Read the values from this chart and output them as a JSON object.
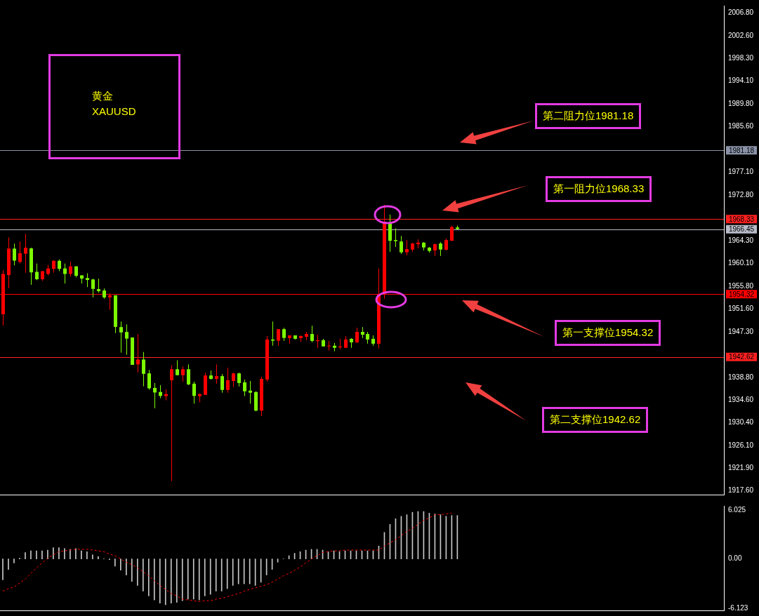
{
  "chart_data": [
    {
      "type": "candlestick",
      "title": "黄金",
      "subtitle": "XAUUSD",
      "categories": [
        null,
        null,
        null,
        null,
        null,
        null,
        null,
        null,
        null,
        null,
        null,
        null,
        null,
        null,
        null,
        null,
        null,
        null,
        null,
        null,
        null,
        null,
        null,
        null,
        null,
        null,
        null,
        null,
        null,
        null,
        null,
        null,
        null,
        null,
        null,
        null,
        null,
        null,
        null,
        null,
        null,
        null,
        null,
        null,
        null,
        null,
        null,
        null,
        null,
        null,
        null,
        null,
        null,
        null,
        null,
        null,
        null,
        null,
        null,
        null,
        null,
        null,
        null,
        null,
        null,
        null,
        null,
        null,
        null,
        null,
        null,
        null,
        null,
        null,
        null,
        null,
        null,
        null,
        null,
        null,
        null,
        null,
        null,
        null,
        null,
        null,
        null,
        null,
        null,
        null,
        null,
        null,
        null,
        null,
        null,
        null,
        null,
        null,
        null,
        null,
        null,
        null,
        null,
        null,
        null,
        null,
        null,
        null,
        null,
        null,
        null,
        null,
        null,
        null,
        null,
        null,
        null,
        null,
        null,
        null,
        null,
        null,
        null,
        null,
        null,
        null,
        null,
        null,
        null
      ],
      "ohlc": [
        [
          1950.58,
          1958.83,
          1948.48,
          1958.1
        ],
        [
          1957.89,
          1964.93,
          1955.44,
          1962.83
        ],
        [
          1962.83,
          1963.77,
          1959.69,
          1960.59
        ],
        [
          1960.34,
          1964.16,
          1960.08,
          1961.97
        ],
        [
          1961.88,
          1965.58,
          1958.32,
          1963.0
        ],
        [
          1962.87,
          1963.0,
          1956.08,
          1958.4
        ],
        [
          1958.49,
          1960.04,
          1956.94,
          1957.11
        ],
        [
          1957.11,
          1958.62,
          1956.81,
          1958.62
        ],
        [
          1958.1,
          1959.78,
          1957.84,
          1959.13
        ],
        [
          1959.05,
          1960.68,
          1958.36,
          1960.55
        ],
        [
          1960.55,
          1960.81,
          1958.62,
          1959.05
        ],
        [
          1959.13,
          1960.04,
          1956.3,
          1958.1
        ],
        [
          1958.1,
          1960.42,
          1957.59,
          1959.52
        ],
        [
          1959.52,
          1959.52,
          1957.46,
          1957.76
        ],
        [
          1957.84,
          1957.84,
          1956.3,
          1957.24
        ],
        [
          1957.33,
          1958.23,
          1955.65,
          1956.98
        ],
        [
          1957.07,
          1957.2,
          1953.72,
          1955.31
        ],
        [
          1955.27,
          1957.2,
          1954.62,
          1954.88
        ],
        [
          1955.01,
          1955.4,
          1953.46,
          1953.72
        ],
        [
          1953.72,
          1954.49,
          1951.4,
          1954.11
        ],
        [
          1954.11,
          1954.11,
          1947.06,
          1948.22
        ],
        [
          1948.18,
          1949.21,
          1943.41,
          1947.19
        ],
        [
          1947.27,
          1948.69,
          1943.02,
          1946.03
        ],
        [
          1946.24,
          1946.24,
          1941.13,
          1941.13
        ],
        [
          1941.21,
          1946.89,
          1939.71,
          1942.12
        ],
        [
          1942.12,
          1943.53,
          1937.13,
          1939.45
        ],
        [
          1939.54,
          1940.18,
          1936.49,
          1936.75
        ],
        [
          1936.83,
          1937.73,
          1933.01,
          1935.97
        ],
        [
          1936.06,
          1937.35,
          1934.9,
          1935.33
        ],
        [
          1935.29,
          1936.58,
          1934.51,
          1935.67
        ],
        [
          1938.25,
          1941.09,
          1919.43,
          1940.31
        ],
        [
          1940.31,
          1941.99,
          1939.2,
          1939.2
        ],
        [
          1939.2,
          1940.83,
          1937.99,
          1940.31
        ],
        [
          1940.31,
          1941.22,
          1937.35,
          1937.48
        ],
        [
          1937.61,
          1937.99,
          1933.87,
          1935.33
        ],
        [
          1935.29,
          1935.8,
          1934.12,
          1935.67
        ],
        [
          1935.54,
          1939.67,
          1935.54,
          1939.15
        ],
        [
          1939.15,
          1940.06,
          1938.38,
          1938.51
        ],
        [
          1938.51,
          1941.22,
          1937.61,
          1939.02
        ],
        [
          1939.02,
          1939.41,
          1935.93,
          1936.45
        ],
        [
          1936.45,
          1940.57,
          1935.93,
          1938.25
        ],
        [
          1938.12,
          1939.67,
          1936.96,
          1939.54
        ],
        [
          1939.54,
          1939.67,
          1937.09,
          1937.74
        ],
        [
          1937.86,
          1938.38,
          1935.29,
          1936.19
        ],
        [
          1936.32,
          1938.12,
          1933.87,
          1935.93
        ],
        [
          1936.06,
          1936.19,
          1932.45,
          1932.58
        ],
        [
          1932.58,
          1938.89,
          1931.55,
          1938.51
        ],
        [
          1938.38,
          1946.5,
          1937.99,
          1945.86
        ],
        [
          1945.86,
          1949.21,
          1944.7,
          1945.64
        ],
        [
          1945.64,
          1947.79,
          1944.7,
          1947.79
        ],
        [
          1947.79,
          1948.05,
          1945.6,
          1946.16
        ],
        [
          1946.12,
          1946.63,
          1945.08,
          1946.63
        ],
        [
          1946.63,
          1946.63,
          1945.86,
          1945.99
        ],
        [
          1946.12,
          1946.63,
          1945.43,
          1946.5
        ],
        [
          1946.37,
          1947.28,
          1945.73,
          1946.89
        ],
        [
          1946.89,
          1948.44,
          1945.34,
          1945.6
        ],
        [
          1945.56,
          1946.76,
          1944.31,
          1945.73
        ],
        [
          1945.73,
          1945.99,
          1944.57,
          1944.57
        ],
        [
          1944.57,
          1945.6,
          1943.8,
          1944.7
        ],
        [
          1944.7,
          1945.21,
          1943.67,
          1944.31
        ],
        [
          1944.4,
          1945.99,
          1944.05,
          1944.57
        ],
        [
          1944.31,
          1946.5,
          1944.31,
          1945.86
        ],
        [
          1945.99,
          1946.12,
          1944.31,
          1945.34
        ],
        [
          1945.34,
          1948.05,
          1945.21,
          1947.28
        ],
        [
          1947.28,
          1948.18,
          1946.12,
          1946.76
        ],
        [
          1946.89,
          1947.28,
          1945.08,
          1945.86
        ],
        [
          1945.99,
          1946.63,
          1944.7,
          1945.08
        ],
        [
          1945.08,
          1959.14,
          1944.18,
          1954.32
        ],
        [
          1954.32,
          1971.0,
          1953.47,
          1967.86
        ],
        [
          1967.65,
          1969.19,
          1962.23,
          1964.29
        ],
        [
          1964.42,
          1966.61,
          1963.13,
          1964.21
        ],
        [
          1964.16,
          1965.2,
          1961.84,
          1962.14
        ],
        [
          1962.14,
          1964.42,
          1961.59,
          1962.75
        ],
        [
          1962.66,
          1963.91,
          1962.23,
          1963.78
        ],
        [
          1963.65,
          1964.55,
          1962.87,
          1963.95
        ],
        [
          1963.95,
          1964.04,
          1962.49,
          1963.05
        ],
        [
          1963.01,
          1963.13,
          1962.1,
          1962.4
        ],
        [
          1962.49,
          1963.78,
          1961.46,
          1963.65
        ],
        [
          1963.78,
          1964.04,
          1961.46,
          1962.66
        ],
        [
          1962.62,
          1964.68,
          1962.49,
          1964.42
        ],
        [
          1964.29,
          1967.13,
          1964.29,
          1966.87
        ],
        [
          1966.78,
          1967.13,
          1966.4,
          1966.48
        ],
        null,
        null,
        null,
        null,
        null,
        null,
        null,
        null,
        null,
        null,
        null,
        null,
        null,
        null,
        null,
        null,
        null,
        null,
        null,
        null,
        null,
        null,
        null,
        null,
        null,
        null,
        null,
        null,
        null,
        null,
        null,
        null,
        null,
        null,
        null,
        null,
        null,
        null,
        null,
        null,
        null,
        null,
        null,
        null,
        null,
        null,
        null
      ],
      "colors": [
        "#ff0000",
        "#ff0000",
        "#7cfc00",
        "#ff0000",
        "#ff0000",
        "#7cfc00",
        "#7cfc00",
        "#ff0000",
        "#ff0000",
        "#ff0000",
        "#7cfc00",
        "#7cfc00",
        "#ff0000",
        "#7cfc00",
        "#7cfc00",
        "#7cfc00",
        "#7cfc00",
        "#7cfc00",
        "#7cfc00",
        "#ff0000",
        "#7cfc00",
        "#7cfc00",
        "#7cfc00",
        "#7cfc00",
        "#ff0000",
        "#7cfc00",
        "#7cfc00",
        "#7cfc00",
        "#7cfc00",
        "#ff0000",
        "#ff0000",
        "#7cfc00",
        "#ff0000",
        "#7cfc00",
        "#7cfc00",
        "#ff0000",
        "#ff0000",
        "#7cfc00",
        "#ff0000",
        "#7cfc00",
        "#ff0000",
        "#ff0000",
        "#7cfc00",
        "#7cfc00",
        "#7cfc00",
        "#7cfc00",
        "#ff0000",
        "#ff0000",
        "#7cfc00",
        "#ff0000",
        "#7cfc00",
        "#ff0000",
        "#7cfc00",
        "#ff0000",
        "#ff0000",
        "#7cfc00",
        "#ff0000",
        "#7cfc00",
        "#ff0000",
        "#7cfc00",
        "#ff0000",
        "#ff0000",
        "#7cfc00",
        "#ff0000",
        "#7cfc00",
        "#7cfc00",
        "#7cfc00",
        "#ff0000",
        "#ff0000",
        "#7cfc00",
        "#7cfc00",
        "#7cfc00",
        "#ff0000",
        "#ff0000",
        "#ff0000",
        "#7cfc00",
        "#7cfc00",
        "#ff0000",
        "#7cfc00",
        "#ff0000",
        "#ff0000",
        "#7cfc00",
        null,
        null,
        null,
        null,
        null,
        null,
        null,
        null,
        null,
        null,
        null,
        null,
        null,
        null,
        null,
        null,
        null,
        null,
        null,
        null,
        null,
        null,
        null,
        null,
        null,
        null,
        null,
        null,
        null,
        null,
        null,
        null,
        null,
        null,
        null,
        null,
        null,
        null,
        null,
        null,
        null,
        null,
        null,
        null,
        null,
        null,
        null
      ],
      "ylim": [
        1916.9,
        2008.2
      ],
      "yticks": [
        {
          "value": 2006.8,
          "label": "2006.80"
        },
        {
          "value": 2002.6,
          "label": "2002.60"
        },
        {
          "value": 1998.3,
          "label": "1998.30"
        },
        {
          "value": 1994.1,
          "label": "1994.10"
        },
        {
          "value": 1989.8,
          "label": "1989.80"
        },
        {
          "value": 1985.6,
          "label": "1985.60"
        },
        {
          "value": 1977.1,
          "label": "1977.10"
        },
        {
          "value": 1972.8,
          "label": "1972.80"
        },
        {
          "value": 1964.3,
          "label": "1964.30"
        },
        {
          "value": 1960.1,
          "label": "1960.10"
        },
        {
          "value": 1955.8,
          "label": "1955.80"
        },
        {
          "value": 1951.6,
          "label": "1951.60"
        },
        {
          "value": 1947.3,
          "label": "1947.30"
        },
        {
          "value": 1938.8,
          "label": "1938.80"
        },
        {
          "value": 1934.6,
          "label": "1934.60"
        },
        {
          "value": 1930.4,
          "label": "1930.40"
        },
        {
          "value": 1926.1,
          "label": "1926.10"
        },
        {
          "value": 1921.9,
          "label": "1921.90"
        },
        {
          "value": 1917.6,
          "label": "1917.60"
        }
      ],
      "tick_labels": "y",
      "ref_lines": [
        {
          "axis": "y",
          "value": 1981.18,
          "label": "1981.18",
          "color": "#8a93a8"
        },
        {
          "axis": "y",
          "value": 1968.33,
          "label": "1968.33",
          "color": "#ff2020"
        },
        {
          "axis": "y",
          "value": 1966.45,
          "label": "1966.45",
          "color": "#b8bcc8"
        },
        {
          "axis": "y",
          "value": 1954.32,
          "label": "1954.32",
          "color": "#ff0000"
        },
        {
          "axis": "y",
          "value": 1942.62,
          "label": "1942.62",
          "color": "#ff2020"
        }
      ],
      "annotations": [
        "第二阻力位1981.18",
        "第一阻力位1968.33",
        "第一支撑位1954.32",
        "第二支撑位1942.62"
      ]
    },
    {
      "type": "bar",
      "categories": [
        null,
        null,
        null,
        null,
        null,
        null,
        null,
        null,
        null,
        null,
        null,
        null,
        null,
        null,
        null,
        null,
        null,
        null,
        null,
        null,
        null,
        null,
        null,
        null,
        null,
        null,
        null,
        null,
        null,
        null,
        null,
        null,
        null,
        null,
        null,
        null,
        null,
        null,
        null,
        null,
        null,
        null,
        null,
        null,
        null,
        null,
        null,
        null,
        null,
        null,
        null,
        null,
        null,
        null,
        null,
        null,
        null,
        null,
        null,
        null,
        null,
        null,
        null,
        null,
        null,
        null,
        null,
        null,
        null,
        null,
        null,
        null,
        null,
        null,
        null,
        null,
        null,
        null,
        null,
        null,
        null,
        null,
        null,
        null,
        null,
        null,
        null,
        null,
        null,
        null,
        null,
        null,
        null,
        null,
        null,
        null,
        null,
        null,
        null,
        null,
        null,
        null,
        null,
        null,
        null,
        null,
        null,
        null,
        null,
        null,
        null,
        null,
        null,
        null,
        null,
        null,
        null,
        null,
        null,
        null,
        null,
        null,
        null,
        null,
        null,
        null,
        null,
        null,
        null
      ],
      "series": [
        {
          "type": "bar",
          "color": "#c8c8c8",
          "values": [
            -2.6,
            -1.3,
            -0.5,
            0.1,
            0.8,
            1.0,
            1.0,
            1.0,
            1.1,
            1.4,
            1.4,
            1.3,
            1.2,
            1.3,
            1.0,
            0.9,
            0.5,
            0.3,
            0,
            -0.1,
            -0.9,
            -1.4,
            -2.0,
            -2.8,
            -3.3,
            -4.0,
            -4.6,
            -5.1,
            -5.5,
            -5.7,
            -5.5,
            -5.4,
            -5.2,
            -5.0,
            -5.0,
            -5.1,
            -4.6,
            -4.4,
            -4.0,
            -4.0,
            -3.7,
            -3.3,
            -3.1,
            -3.1,
            -3.1,
            -3.3,
            -2.9,
            -2.0,
            -1.3,
            -0.4,
            0,
            0.4,
            0.7,
            0.9,
            1.1,
            1.2,
            1.2,
            1.1,
            0.9,
            1.0,
            0.9,
            1.0,
            1.0,
            1.0,
            1.0,
            1.0,
            1.0,
            1.6,
            3.3,
            4.3,
            5.0,
            5.3,
            5.5,
            5.8,
            5.9,
            5.9,
            5.7,
            5.6,
            5.5,
            5.3,
            5.4,
            5.4,
            null,
            null,
            null,
            null,
            null,
            null,
            null,
            null,
            null,
            null,
            null,
            null,
            null,
            null,
            null,
            null,
            null,
            null,
            null,
            null,
            null,
            null,
            null,
            null,
            null,
            null,
            null,
            null,
            null,
            null,
            null,
            null,
            null,
            null,
            null,
            null,
            null,
            null,
            null,
            null,
            null,
            null,
            null,
            null,
            null,
            null,
            null
          ]
        },
        {
          "type": "line",
          "color": "#ff0000",
          "line_style": "dashed",
          "marker": "none",
          "values": [
            -4.0,
            -3.7,
            -3.5,
            -3.0,
            -2.5,
            -1.8,
            -1.1,
            -0.5,
            0.1,
            0.5,
            0.9,
            1.0,
            1.1,
            1.2,
            1.2,
            1.2,
            1.1,
            1.0,
            0.9,
            0.6,
            0.4,
            0.0,
            -0.4,
            -0.7,
            -1.1,
            -1.6,
            -2.1,
            -2.7,
            -3.3,
            -3.8,
            -4.3,
            -4.6,
            -5.0,
            -5.1,
            -5.2,
            -5.3,
            -5.2,
            -5.2,
            -5.0,
            -4.9,
            -4.7,
            -4.5,
            -4.3,
            -4.0,
            -3.8,
            -3.6,
            -3.4,
            -3.2,
            -2.9,
            -2.5,
            -2.1,
            -1.8,
            -1.4,
            -1.0,
            -0.5,
            0.0,
            0.4,
            0.8,
            0.9,
            1.0,
            1.0,
            1.1,
            1.1,
            1.1,
            1.1,
            1.1,
            1.1,
            1.1,
            1.6,
            2.0,
            2.4,
            2.9,
            3.4,
            3.8,
            4.3,
            4.8,
            5.1,
            5.5,
            5.5,
            5.6,
            5.7,
            null,
            null,
            null,
            null,
            null,
            null,
            null,
            null,
            null,
            null,
            null,
            null,
            null,
            null,
            null,
            null,
            null,
            null,
            null,
            null,
            null,
            null,
            null,
            null,
            null,
            null,
            null,
            null,
            null,
            null,
            null,
            null,
            null,
            null,
            null,
            null,
            null,
            null,
            null,
            null,
            null,
            null,
            null,
            null,
            null,
            null,
            null,
            null
          ]
        }
      ],
      "ylim": [
        -6.4,
        6.6
      ],
      "yticks": [
        6.025,
        {
          "value": 0,
          "label": "0.00"
        },
        -6.123
      ],
      "tick_labels": "y"
    }
  ]
}
